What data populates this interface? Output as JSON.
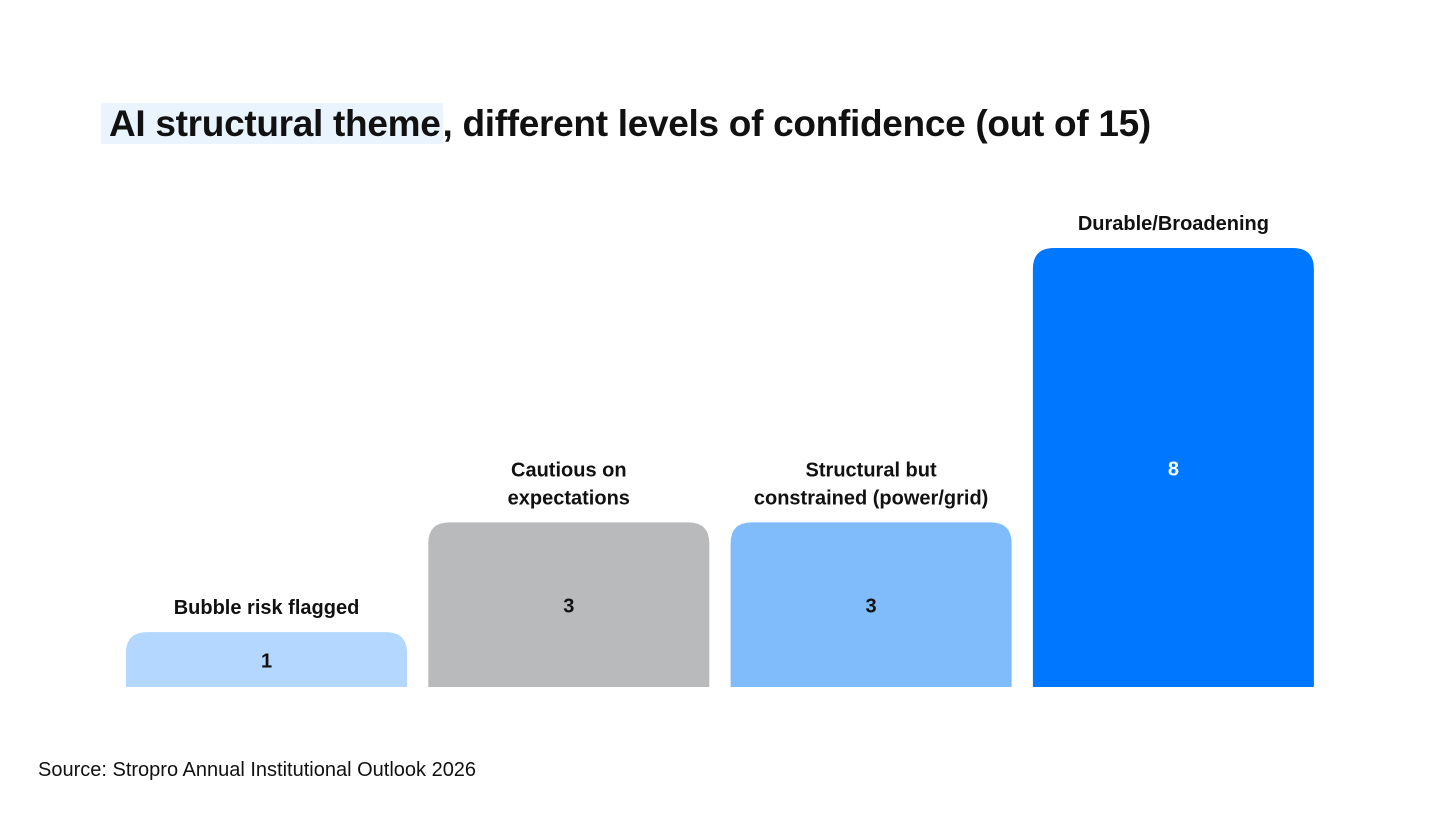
{
  "chart_data": {
    "type": "bar",
    "title": {
      "highlight": "AI structural theme",
      "rest": ", different levels of confidence (out of 15)"
    },
    "categories": [
      "Bubble risk flagged",
      "Cautious on expectations",
      "Structural but constrained (power/grid)",
      "Durable/Broadening"
    ],
    "category_label_lines": [
      [
        "Bubble risk flagged"
      ],
      [
        "Cautious on",
        "expectations"
      ],
      [
        "Structural but",
        "constrained (power/grid)"
      ],
      [
        "Durable/Broadening"
      ]
    ],
    "values": [
      1,
      3,
      3,
      8
    ],
    "value_labels": [
      "1",
      "3",
      "3",
      "8"
    ],
    "colors": [
      "#b3d7ff",
      "#b9babc",
      "#80bcfc",
      "#0077ff"
    ],
    "value_label_colors": [
      "#111111",
      "#111111",
      "#111111",
      "#ffffff"
    ],
    "xlabel": "",
    "ylabel": "",
    "ylim": [
      0,
      8
    ],
    "grid": false,
    "legend": "none"
  },
  "footer": {
    "source": "Source: Stropro Annual Institutional Outlook 2026"
  }
}
